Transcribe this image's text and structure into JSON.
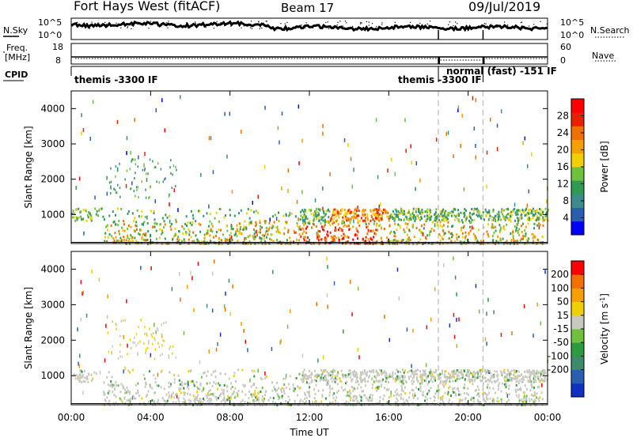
{
  "header": {
    "title": "Fort Hays West (fitACF)",
    "beam": "Beam 17",
    "date": "09/Jul/2019"
  },
  "panels": {
    "nsky_label": "N.Sky",
    "nsearch_label": "N.Search",
    "freq_label_top": "Freq.",
    "freq_label_bottom": "[MHz]",
    "nave_label": "Nave",
    "cpid_label": "CPID",
    "noise_ticks": {
      "left_top": "10^5",
      "left_bottom": "10^0",
      "right_top": "10^5",
      "right_bottom": "10^0"
    },
    "freq_ticks": {
      "left_top": "18",
      "left_bottom": "8",
      "right_top": "60",
      "right_bottom": "0"
    }
  },
  "cpid_segments": [
    {
      "label": "themis -3300 IF",
      "start_hour": 0.0
    },
    {
      "label": "themis -3300 IF",
      "start_hour": 18.0
    },
    {
      "label": "normal (fast) -151 IF",
      "start_hour": 18.7
    }
  ],
  "chart_data": [
    {
      "type": "heatmap",
      "name": "power",
      "xlabel": "",
      "ylabel": "Slant Range [km]",
      "x_tick_labels": [
        "00:00",
        "04:00",
        "08:00",
        "12:00",
        "16:00",
        "20:00",
        "00:00"
      ],
      "x_range_hours": [
        0,
        24
      ],
      "y_ticks": [
        1000,
        2000,
        3000,
        4000
      ],
      "y_range_km": [
        180,
        4500
      ],
      "colorbar": {
        "label": "Power [dB]",
        "ticks": [
          4,
          8,
          12,
          16,
          20,
          24,
          28
        ],
        "range": [
          0,
          32
        ],
        "colors": [
          "#0000ff",
          "#2a5fb0",
          "#3d8b8b",
          "#2e9a52",
          "#70c040",
          "#f0d000",
          "#f5a000",
          "#f07000",
          "#e82000",
          "#ff0000"
        ]
      },
      "mode_change_hours": [
        18.5,
        20.75
      ]
    },
    {
      "type": "heatmap",
      "name": "velocity",
      "xlabel": "Time UT",
      "ylabel": "Slant Range [km]",
      "x_tick_labels": [
        "00:00",
        "04:00",
        "08:00",
        "12:00",
        "16:00",
        "20:00",
        "00:00"
      ],
      "x_range_hours": [
        0,
        24
      ],
      "y_ticks": [
        1000,
        2000,
        3000,
        4000
      ],
      "y_range_km": [
        180,
        4500
      ],
      "colorbar": {
        "label": "Velocity [m s",
        "label_sup": "-1",
        "label_end": "]",
        "ticks": [
          "200",
          "100",
          "50",
          "15",
          "-15",
          "-50",
          "-100",
          "-200"
        ],
        "colors": [
          "#1030c0",
          "#2a5fb0",
          "#3d8b6b",
          "#2e9a40",
          "#70c040",
          "#c8c8c0",
          "#f0d000",
          "#f5a000",
          "#f07000",
          "#ff0000"
        ]
      },
      "mode_change_hours": [
        18.5,
        20.75
      ]
    }
  ]
}
